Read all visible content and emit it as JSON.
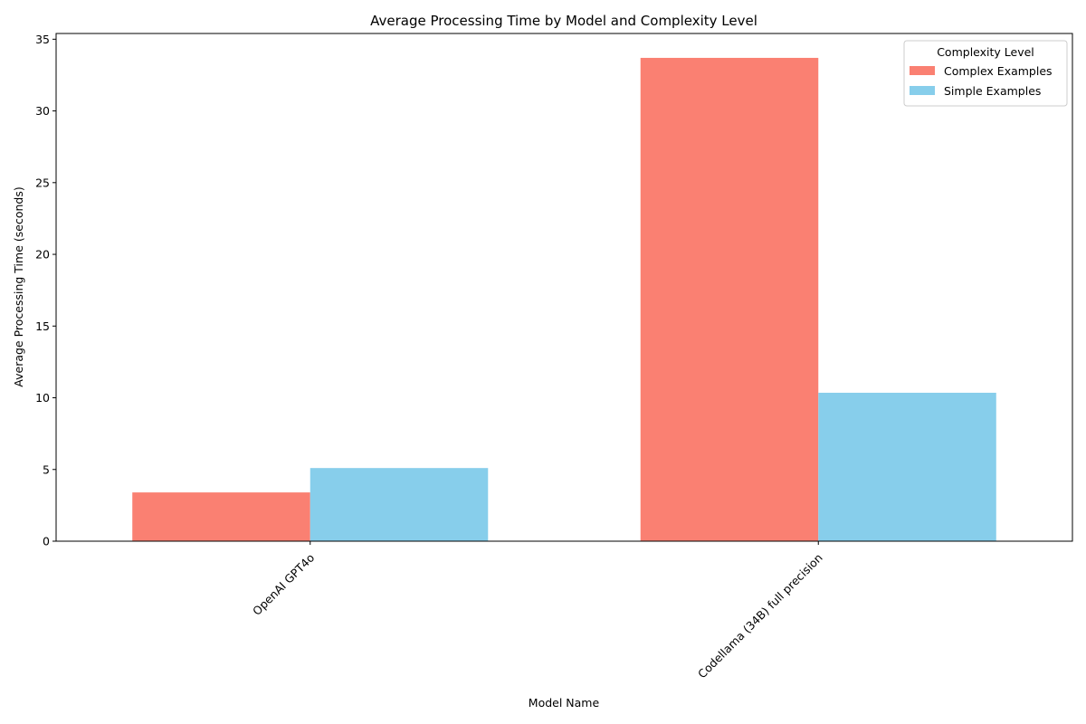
{
  "chart_data": {
    "type": "bar",
    "title": "Average Processing Time by Model and Complexity Level",
    "xlabel": "Model Name",
    "ylabel": "Average Processing Time (seconds)",
    "categories": [
      "OpenAI GPT4o",
      "Codellama (34B) full precision"
    ],
    "series": [
      {
        "name": "Complex Examples",
        "values": [
          3.4,
          33.7
        ],
        "color": "#fa8072"
      },
      {
        "name": "Simple Examples",
        "values": [
          5.1,
          10.35
        ],
        "color": "#87ceeb"
      }
    ],
    "ylim": [
      0,
      35.4
    ],
    "yticks": [
      0,
      5,
      10,
      15,
      20,
      25,
      30,
      35
    ],
    "grid": false,
    "legend": {
      "title": "Complexity Level",
      "placement": "top-right"
    }
  }
}
